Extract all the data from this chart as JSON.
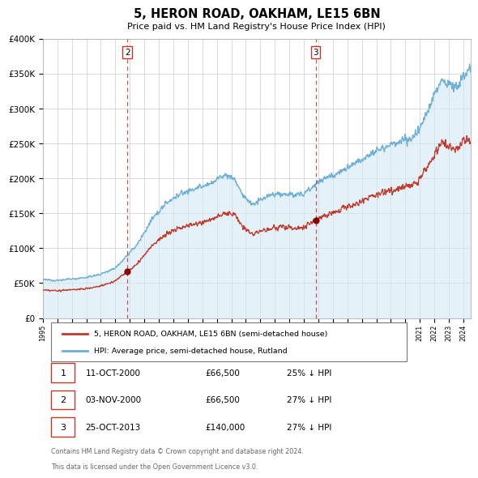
{
  "title": "5, HERON ROAD, OAKHAM, LE15 6BN",
  "subtitle": "Price paid vs. HM Land Registry's House Price Index (HPI)",
  "hpi_color": "#6baed6",
  "hpi_fill_color": "#d4e8f5",
  "price_color": "#c0392b",
  "vline_color": "#c0392b",
  "marker_color": "#8b0000",
  "ylim": [
    0,
    400000
  ],
  "yticks": [
    0,
    50000,
    100000,
    150000,
    200000,
    250000,
    300000,
    350000,
    400000
  ],
  "transaction2_date": 2000.84,
  "transaction2_price": 66500,
  "transaction3_date": 2013.81,
  "transaction3_price": 140000,
  "vline2_x": 2000.84,
  "vline3_x": 2013.81,
  "legend_label_price": "5, HERON ROAD, OAKHAM, LE15 6BN (semi-detached house)",
  "legend_label_hpi": "HPI: Average price, semi-detached house, Rutland",
  "table_rows": [
    [
      "1",
      "11-OCT-2000",
      "£66,500",
      "25% ↓ HPI"
    ],
    [
      "2",
      "03-NOV-2000",
      "£66,500",
      "27% ↓ HPI"
    ],
    [
      "3",
      "25-OCT-2013",
      "£140,000",
      "27% ↓ HPI"
    ]
  ],
  "footnote1": "Contains HM Land Registry data © Crown copyright and database right 2024.",
  "footnote2": "This data is licensed under the Open Government Licence v3.0.",
  "background_color": "#ffffff",
  "grid_color": "#cccccc",
  "xmin": 1995,
  "xmax": 2024.5
}
